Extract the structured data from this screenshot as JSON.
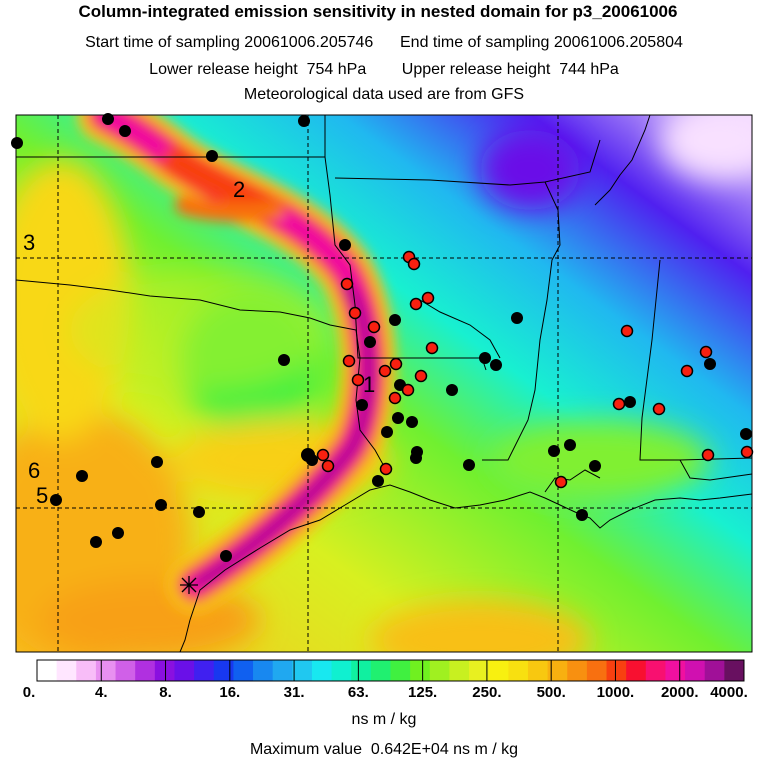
{
  "header": {
    "title": "Column-integrated emission sensitivity in nested domain for p3_20061006",
    "start_label": "Start time of sampling",
    "start_value": "20061006.205746",
    "end_label": "End time of sampling",
    "end_value": "20061006.205804",
    "lower_label": "Lower release height",
    "lower_value": "754 hPa",
    "upper_label": "Upper release height",
    "upper_value": "744 hPa",
    "met_text": "Meteorological data used are from GFS"
  },
  "plume_labels": [
    "1",
    "2",
    "3",
    "5",
    "6"
  ],
  "colorbar": {
    "tick_labels": [
      "0.",
      "4.",
      "8.",
      "16.",
      "31.",
      "63.",
      "125.",
      "250.",
      "500.",
      "1000.",
      "2000.",
      "4000."
    ],
    "colors": [
      "#ffffff",
      "#ffe6ff",
      "#f8bdf8",
      "#e890f0",
      "#d060e8",
      "#b030e0",
      "#8a10e0",
      "#6a10e8",
      "#4020f0",
      "#1838f0",
      "#1060f0",
      "#1888f0",
      "#20a8f0",
      "#20c8f0",
      "#18e8f0",
      "#10f0d0",
      "#10f0a0",
      "#20f070",
      "#40f040",
      "#70f020",
      "#a0f020",
      "#c8f020",
      "#e8f020",
      "#f8f010",
      "#f8e010",
      "#f8c810",
      "#f8b010",
      "#f89010",
      "#f87010",
      "#f84010",
      "#f81030",
      "#f81070",
      "#f010a0",
      "#d010b0",
      "#a01098",
      "#681060"
    ],
    "unit": "ns m / kg"
  },
  "footer": {
    "max_label": "Maximum value",
    "max_value": "0.642E+04 ns m / kg"
  },
  "stations_black": 34,
  "stations_red": 32
}
